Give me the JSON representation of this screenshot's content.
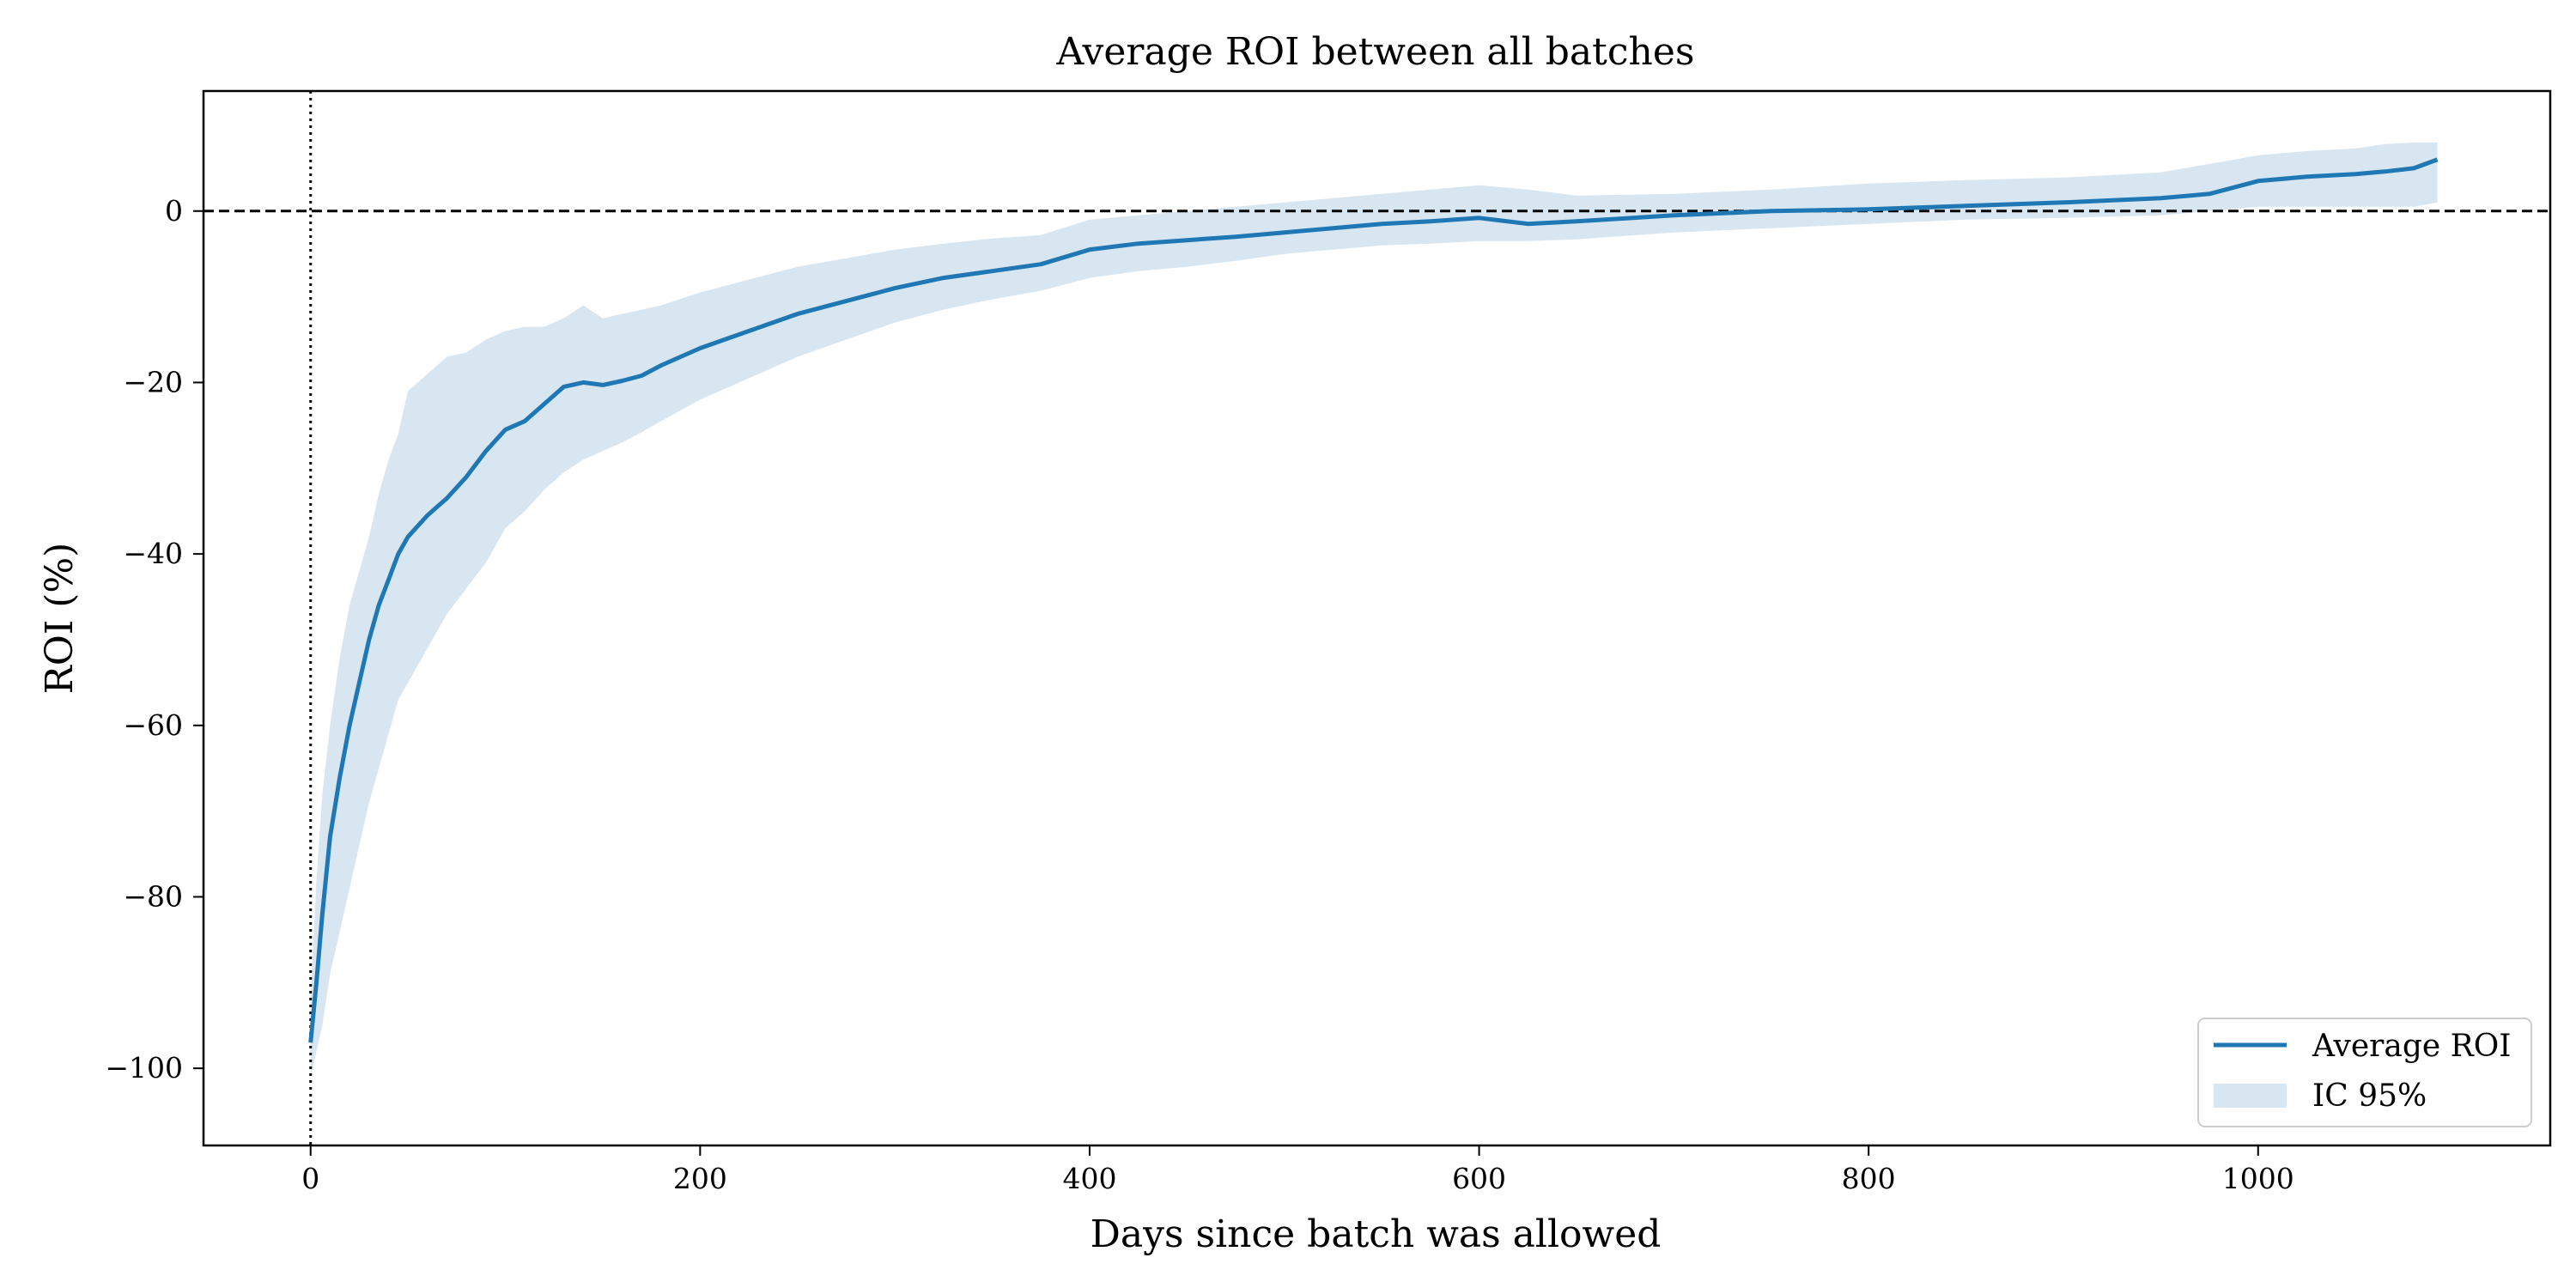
{
  "chart_data": {
    "type": "line",
    "title": "Average ROI between all batches",
    "xlabel": "Days since batch was allowed",
    "ylabel": "ROI (%)",
    "xlim": [
      -55,
      1150
    ],
    "ylim": [
      -109,
      14
    ],
    "xticks": [
      0,
      200,
      400,
      600,
      800,
      1000
    ],
    "xtick_labels": [
      "0",
      "200",
      "400",
      "600",
      "800",
      "1000"
    ],
    "yticks": [
      0,
      -20,
      -40,
      -60,
      -80,
      -100
    ],
    "ytick_labels": [
      "0",
      "−20",
      "−40",
      "−60",
      "−80",
      "−100"
    ],
    "grid": false,
    "legend_position": "bottom-right",
    "reference_lines": [
      {
        "orientation": "horizontal",
        "value": 0,
        "style": "dashed",
        "color": "#000000"
      },
      {
        "orientation": "vertical",
        "value": 0,
        "style": "dotted",
        "color": "#000000"
      }
    ],
    "series": [
      {
        "name": "Average ROI",
        "type": "line",
        "color": "#1f77b4",
        "x": [
          0,
          3,
          6,
          10,
          15,
          20,
          25,
          30,
          35,
          40,
          45,
          50,
          60,
          70,
          80,
          90,
          100,
          110,
          120,
          130,
          140,
          150,
          160,
          170,
          180,
          200,
          225,
          250,
          275,
          300,
          325,
          350,
          375,
          400,
          425,
          450,
          475,
          500,
          525,
          550,
          575,
          600,
          625,
          650,
          700,
          750,
          800,
          850,
          900,
          950,
          975,
          1000,
          1025,
          1050,
          1065,
          1080,
          1092
        ],
        "y": [
          -97,
          -90,
          -82,
          -73,
          -66,
          -60,
          -55,
          -50,
          -46,
          -43,
          -40,
          -38,
          -35.5,
          -33.5,
          -31,
          -28,
          -25.5,
          -24.5,
          -22.5,
          -20.5,
          -20,
          -20.3,
          -19.8,
          -19.2,
          -18,
          -16,
          -14,
          -12,
          -10.5,
          -9,
          -7.8,
          -7,
          -6.2,
          -4.5,
          -3.8,
          -3.4,
          -3,
          -2.5,
          -2,
          -1.5,
          -1.2,
          -0.8,
          -1.5,
          -1.2,
          -0.5,
          0,
          0.2,
          0.6,
          1.0,
          1.5,
          2,
          3.5,
          4,
          4.3,
          4.6,
          5,
          6
        ]
      },
      {
        "name": "IC 95%",
        "type": "band",
        "color": "#1f77b4",
        "opacity": 0.18,
        "x": [
          0,
          3,
          6,
          10,
          15,
          20,
          25,
          30,
          35,
          40,
          45,
          50,
          60,
          70,
          80,
          90,
          100,
          110,
          120,
          130,
          140,
          150,
          160,
          170,
          180,
          200,
          225,
          250,
          275,
          300,
          325,
          350,
          375,
          400,
          425,
          450,
          475,
          500,
          525,
          550,
          575,
          600,
          625,
          650,
          700,
          750,
          800,
          850,
          900,
          950,
          975,
          1000,
          1025,
          1050,
          1065,
          1080,
          1092
        ],
        "lower": [
          -101,
          -98,
          -95,
          -89,
          -84,
          -79,
          -74,
          -69,
          -65,
          -61,
          -57,
          -55,
          -51,
          -47,
          -44,
          -41,
          -37,
          -35,
          -32.5,
          -30.5,
          -29,
          -28,
          -27,
          -25.8,
          -24.5,
          -22,
          -19.5,
          -17,
          -15,
          -13,
          -11.5,
          -10.3,
          -9.3,
          -7.8,
          -7,
          -6.5,
          -5.8,
          -5,
          -4.5,
          -4,
          -3.8,
          -3.5,
          -3.5,
          -3.3,
          -2.5,
          -2,
          -1.5,
          -1,
          -0.8,
          -0.5,
          0,
          0.5,
          0.5,
          0.5,
          0.5,
          0.5,
          1
        ],
        "upper": [
          -92,
          -78,
          -68,
          -60,
          -52,
          -46,
          -42,
          -38,
          -33,
          -29,
          -26,
          -21,
          -19,
          -17,
          -16.5,
          -15,
          -14,
          -13.5,
          -13.5,
          -12.5,
          -11,
          -12.5,
          -12,
          -11.5,
          -11,
          -9.5,
          -8,
          -6.5,
          -5.5,
          -4.5,
          -3.8,
          -3.2,
          -2.8,
          -1,
          -0.5,
          0,
          0.5,
          1,
          1.5,
          2,
          2.5,
          3,
          2.5,
          1.8,
          2,
          2.5,
          3.2,
          3.6,
          3.9,
          4.5,
          5.5,
          6.5,
          7,
          7.3,
          7.8,
          8,
          8
        ]
      }
    ]
  }
}
